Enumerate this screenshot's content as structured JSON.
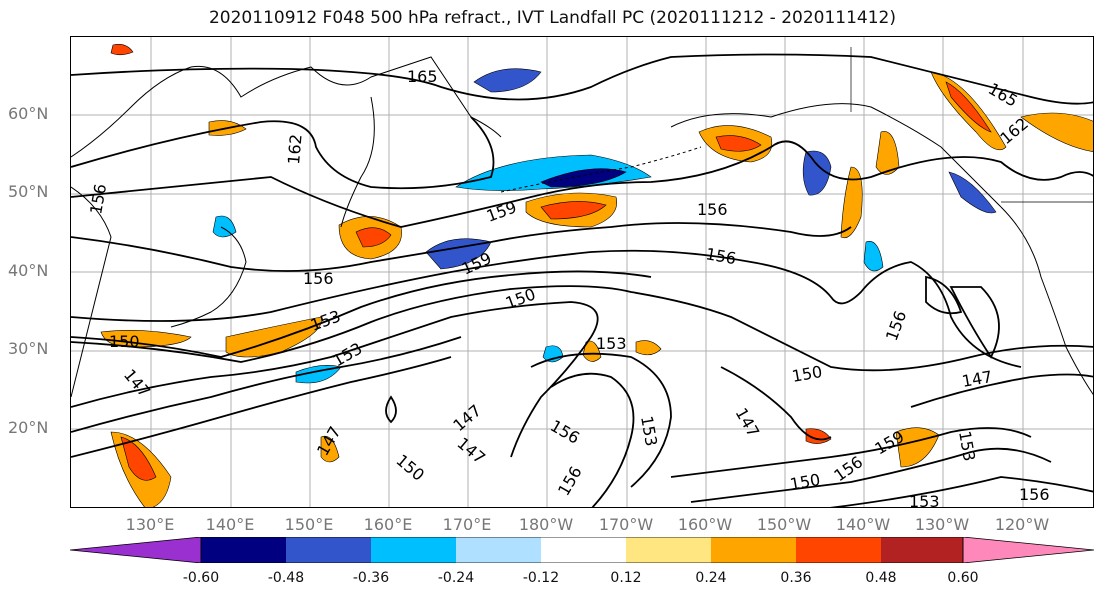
{
  "title": "2020110912 F048 500 hPa refract., IVT Landfall PC (2020111212 - 2020111412)",
  "map": {
    "lon_range": [
      120,
      245
    ],
    "lat_range": [
      10,
      70
    ],
    "lat_ticks": [
      "60°N",
      "50°N",
      "40°N",
      "30°N",
      "20°N"
    ],
    "lon_ticks": [
      "130°E",
      "140°E",
      "150°E",
      "160°E",
      "170°E",
      "180°W",
      "170°W",
      "160°W",
      "150°W",
      "140°W",
      "130°W",
      "120°W"
    ],
    "gridlines": true,
    "contour_labels": [
      "165",
      "162",
      "159",
      "156",
      "153",
      "150",
      "147"
    ]
  },
  "colorbar": {
    "ticks": [
      "-0.60",
      "-0.48",
      "-0.36",
      "-0.24",
      "-0.12",
      "0.12",
      "0.24",
      "0.36",
      "0.48",
      "0.60"
    ],
    "colors": [
      "#9b30d0",
      "#000080",
      "#3355cc",
      "#00bfff",
      "#b0e0ff",
      "#ffffff",
      "#ffe680",
      "#ffa500",
      "#ff4500",
      "#b22222",
      "#ff88bb"
    ],
    "extend": "both"
  }
}
